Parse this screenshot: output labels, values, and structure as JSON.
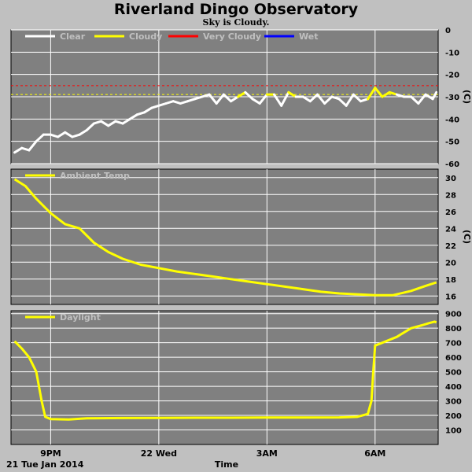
{
  "title": "Riverland Dingo Observatory",
  "subtitle": "Sky is Cloudy.",
  "x_axis": {
    "label": "Time",
    "date_label": "21 Tue Jan 2014",
    "ticks": [
      {
        "hour": 21,
        "label": "9PM"
      },
      {
        "hour": 24,
        "label": "22 Wed"
      },
      {
        "hour": 27,
        "label": "3AM"
      },
      {
        "hour": 30,
        "label": "6AM"
      }
    ]
  },
  "colors": {
    "plot_bg": "#808080",
    "grid": "#ffffff",
    "clear": "#ffffff",
    "cloudy": "#ffff00",
    "very_cloudy": "#ff0000",
    "wet": "#0000ff",
    "axis_text": "#000000",
    "legend_text": "#c0c0c0"
  },
  "chart_data": [
    {
      "type": "line",
      "name": "sky",
      "ylabel": "(C)",
      "ylim": [
        -60,
        0
      ],
      "yticks": [
        0,
        -10,
        -20,
        -30,
        -40,
        -50,
        -60
      ],
      "xlim": [
        19.9,
        31.75
      ],
      "legend": [
        {
          "name": "Clear",
          "color": "#ffffff"
        },
        {
          "name": "Cloudy",
          "color": "#ffff00"
        },
        {
          "name": "Very Cloudy",
          "color": "#ff0000"
        },
        {
          "name": "Wet",
          "color": "#0000ff"
        }
      ],
      "thresholds": [
        {
          "value": -25,
          "color": "#ff0000"
        },
        {
          "value": -29,
          "color": "#ffff00"
        }
      ],
      "series": [
        {
          "x": [
            20.0,
            20.2,
            20.4,
            20.6,
            20.8,
            21.0,
            21.2,
            21.4,
            21.6,
            21.8,
            22.0,
            22.2,
            22.4,
            22.6,
            22.8,
            23.0,
            23.2,
            23.4,
            23.6,
            23.8,
            24.0,
            24.2,
            24.4,
            24.6,
            24.8,
            25.0,
            25.2,
            25.4,
            25.6,
            25.8,
            26.0,
            26.2,
            26.4,
            26.6,
            26.8,
            27.0,
            27.2,
            27.4,
            27.6,
            27.8,
            28.0,
            28.2,
            28.4,
            28.6,
            28.8,
            29.0,
            29.2,
            29.4,
            29.6,
            29.8,
            30.0,
            30.2,
            30.4,
            30.6,
            30.8,
            31.0,
            31.2,
            31.4,
            31.6,
            31.7
          ],
          "y": [
            -55,
            -53,
            -54,
            -50,
            -47,
            -47,
            -48,
            -46,
            -48,
            -47,
            -45,
            -42,
            -41,
            -43,
            -41,
            -42,
            -40,
            -38,
            -37,
            -35,
            -34,
            -33,
            -32,
            -33,
            -32,
            -31,
            -30,
            -29,
            -33,
            -29,
            -32,
            -30,
            -28,
            -31,
            -33,
            -29,
            -29,
            -34,
            -28,
            -30,
            -30,
            -32,
            -29,
            -33,
            -30,
            -31,
            -34,
            -29,
            -32,
            -31,
            -26,
            -30,
            -28,
            -29,
            -30,
            -30,
            -33,
            -29,
            -31,
            -28
          ]
        }
      ]
    },
    {
      "type": "line",
      "name": "temperature",
      "ylabel": "(C)",
      "ylim": [
        15,
        31
      ],
      "yticks": [
        16,
        18,
        20,
        22,
        24,
        26,
        28,
        30
      ],
      "xlim": [
        19.9,
        31.75
      ],
      "legend": [
        {
          "name": "Ambient Temp",
          "color": "#ffff00"
        }
      ],
      "series": [
        {
          "name": "Ambient Temp",
          "x": [
            20.0,
            20.3,
            20.6,
            21.0,
            21.4,
            21.8,
            22.2,
            22.6,
            23.0,
            23.5,
            24.0,
            24.5,
            25.0,
            25.5,
            26.0,
            26.5,
            27.0,
            27.5,
            28.0,
            28.5,
            29.0,
            29.5,
            30.0,
            30.5,
            31.0,
            31.4,
            31.7
          ],
          "y": [
            29.8,
            29.0,
            27.5,
            25.8,
            24.5,
            24.0,
            22.3,
            21.2,
            20.4,
            19.7,
            19.3,
            18.9,
            18.6,
            18.3,
            18.0,
            17.7,
            17.4,
            17.1,
            16.8,
            16.5,
            16.3,
            16.2,
            16.1,
            16.1,
            16.6,
            17.2,
            17.6
          ]
        }
      ]
    },
    {
      "type": "line",
      "name": "daylight",
      "ylabel": "",
      "ylim": [
        0,
        920
      ],
      "yticks": [
        100,
        200,
        300,
        400,
        500,
        600,
        700,
        800,
        900
      ],
      "xlim": [
        19.9,
        31.75
      ],
      "legend": [
        {
          "name": "Daylight",
          "color": "#ffff00"
        }
      ],
      "series": [
        {
          "name": "Daylight",
          "x": [
            20.0,
            20.2,
            20.4,
            20.6,
            20.75,
            20.85,
            21.0,
            21.5,
            22.0,
            23.0,
            24.0,
            25.0,
            26.0,
            27.0,
            28.0,
            29.0,
            29.5,
            29.8,
            29.9,
            29.95,
            30.0,
            30.2,
            30.4,
            30.6,
            30.8,
            31.0,
            31.3,
            31.5,
            31.65,
            31.7
          ],
          "y": [
            710,
            660,
            600,
            500,
            300,
            190,
            175,
            172,
            180,
            182,
            183,
            184,
            184,
            185,
            185,
            186,
            190,
            210,
            300,
            500,
            680,
            700,
            720,
            740,
            770,
            800,
            820,
            835,
            845,
            840
          ]
        }
      ]
    }
  ]
}
